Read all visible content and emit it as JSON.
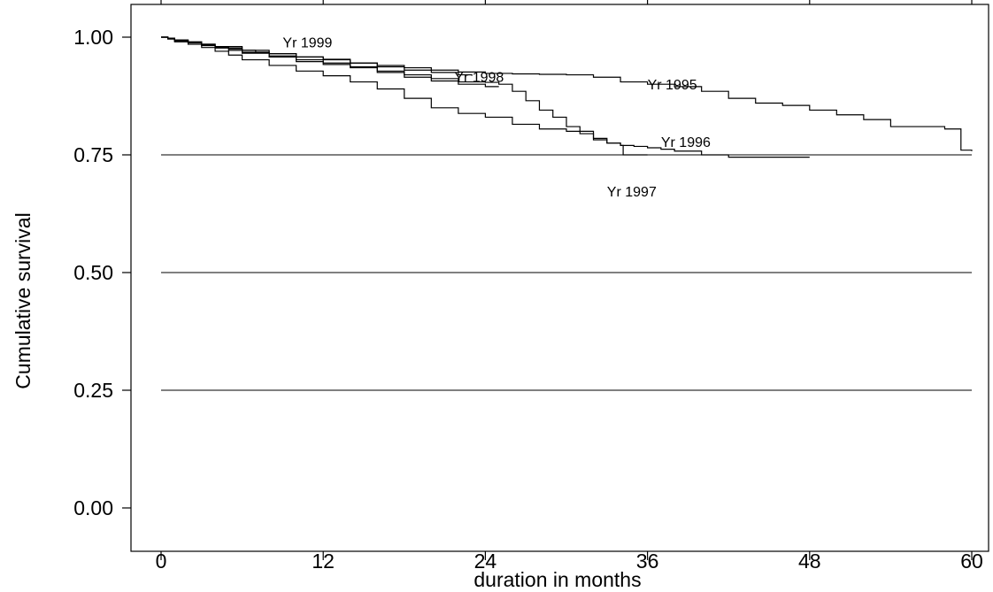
{
  "chart_data": {
    "type": "line",
    "subtype": "step (Kaplan-Meier survival curves)",
    "title": "",
    "xlabel": "duration in months",
    "ylabel": "Cumulative survival",
    "xlim": [
      0,
      60
    ],
    "ylim": [
      0,
      1
    ],
    "xticks": [
      0,
      12,
      24,
      36,
      48,
      60
    ],
    "yticks": [
      "0.00",
      "0.25",
      "0.50",
      "0.75",
      "1.00"
    ],
    "xtick_labels": [
      "0",
      "12",
      "24",
      "36",
      "48",
      "60"
    ],
    "grid": "horizontal reference lines at 0.25, 0.50 and 0.75",
    "reference_lines_y": [
      0.25,
      0.5,
      0.75
    ],
    "line_color": "#000000",
    "series": [
      {
        "name": "Yr 1995",
        "x": [
          0,
          0.5,
          1,
          2,
          3,
          4,
          5,
          6,
          7,
          8,
          10,
          12,
          14,
          16,
          18,
          20,
          22,
          24,
          26,
          28,
          30,
          32,
          34,
          36,
          38,
          40,
          42,
          44,
          46,
          48,
          50,
          52,
          54,
          56,
          58,
          59,
          59.2,
          60
        ],
        "y": [
          1.0,
          0.998,
          0.994,
          0.99,
          0.985,
          0.98,
          0.975,
          0.972,
          0.968,
          0.965,
          0.958,
          0.952,
          0.945,
          0.94,
          0.935,
          0.93,
          0.926,
          0.923,
          0.922,
          0.921,
          0.92,
          0.915,
          0.905,
          0.9,
          0.895,
          0.885,
          0.87,
          0.86,
          0.855,
          0.845,
          0.835,
          0.825,
          0.81,
          0.81,
          0.805,
          0.805,
          0.76,
          0.758
        ]
      },
      {
        "name": "Yr 1996",
        "x": [
          0,
          0.5,
          1,
          2,
          3,
          4,
          5,
          6,
          8,
          10,
          12,
          14,
          16,
          18,
          20,
          22,
          24,
          25,
          26,
          27,
          28,
          29,
          30,
          31,
          32,
          33,
          34,
          35,
          36,
          37,
          38,
          40,
          42,
          44,
          46,
          48
        ],
        "y": [
          1.0,
          0.997,
          0.992,
          0.988,
          0.983,
          0.978,
          0.972,
          0.966,
          0.958,
          0.948,
          0.942,
          0.935,
          0.925,
          0.915,
          0.907,
          0.905,
          0.904,
          0.9,
          0.885,
          0.865,
          0.845,
          0.83,
          0.81,
          0.795,
          0.782,
          0.775,
          0.77,
          0.768,
          0.765,
          0.762,
          0.758,
          0.75,
          0.745,
          0.745,
          0.745,
          0.745
        ]
      },
      {
        "name": "Yr 1997",
        "x": [
          0,
          0.5,
          1,
          2,
          3,
          4,
          5,
          6,
          8,
          10,
          12,
          14,
          16,
          18,
          20,
          22,
          24,
          26,
          28,
          30,
          32,
          33,
          34,
          34.2,
          36
        ],
        "y": [
          1.0,
          0.996,
          0.99,
          0.985,
          0.978,
          0.97,
          0.962,
          0.952,
          0.94,
          0.928,
          0.918,
          0.905,
          0.89,
          0.87,
          0.85,
          0.838,
          0.83,
          0.815,
          0.805,
          0.8,
          0.785,
          0.775,
          0.77,
          0.75,
          0.75
        ]
      },
      {
        "name": "Yr 1998",
        "x": [
          0,
          0.5,
          1,
          2,
          3,
          4,
          6,
          8,
          10,
          12,
          14,
          16,
          18,
          20,
          22,
          24,
          25
        ],
        "y": [
          1.0,
          0.997,
          0.993,
          0.988,
          0.982,
          0.977,
          0.968,
          0.96,
          0.952,
          0.945,
          0.937,
          0.928,
          0.92,
          0.912,
          0.9,
          0.895,
          0.895
        ]
      },
      {
        "name": "Yr 1999",
        "x": [
          0,
          0.5,
          1,
          2,
          3,
          4,
          6,
          8,
          10,
          12,
          14,
          16,
          18,
          20,
          22,
          23
        ],
        "y": [
          1.0,
          0.998,
          0.994,
          0.99,
          0.985,
          0.98,
          0.972,
          0.965,
          0.958,
          0.953,
          0.945,
          0.937,
          0.93,
          0.925,
          0.92,
          0.918
        ]
      }
    ],
    "annotations": [
      {
        "text": "Yr 1999",
        "x": 9.0,
        "y": 0.978
      },
      {
        "text": "Yr 1998",
        "x": 21.7,
        "y": 0.905
      },
      {
        "text": "Yr 1995",
        "x": 36.0,
        "y": 0.889
      },
      {
        "text": "Yr 1996",
        "x": 37.0,
        "y": 0.767
      },
      {
        "text": "Yr 1997",
        "x": 33.0,
        "y": 0.662
      }
    ]
  }
}
